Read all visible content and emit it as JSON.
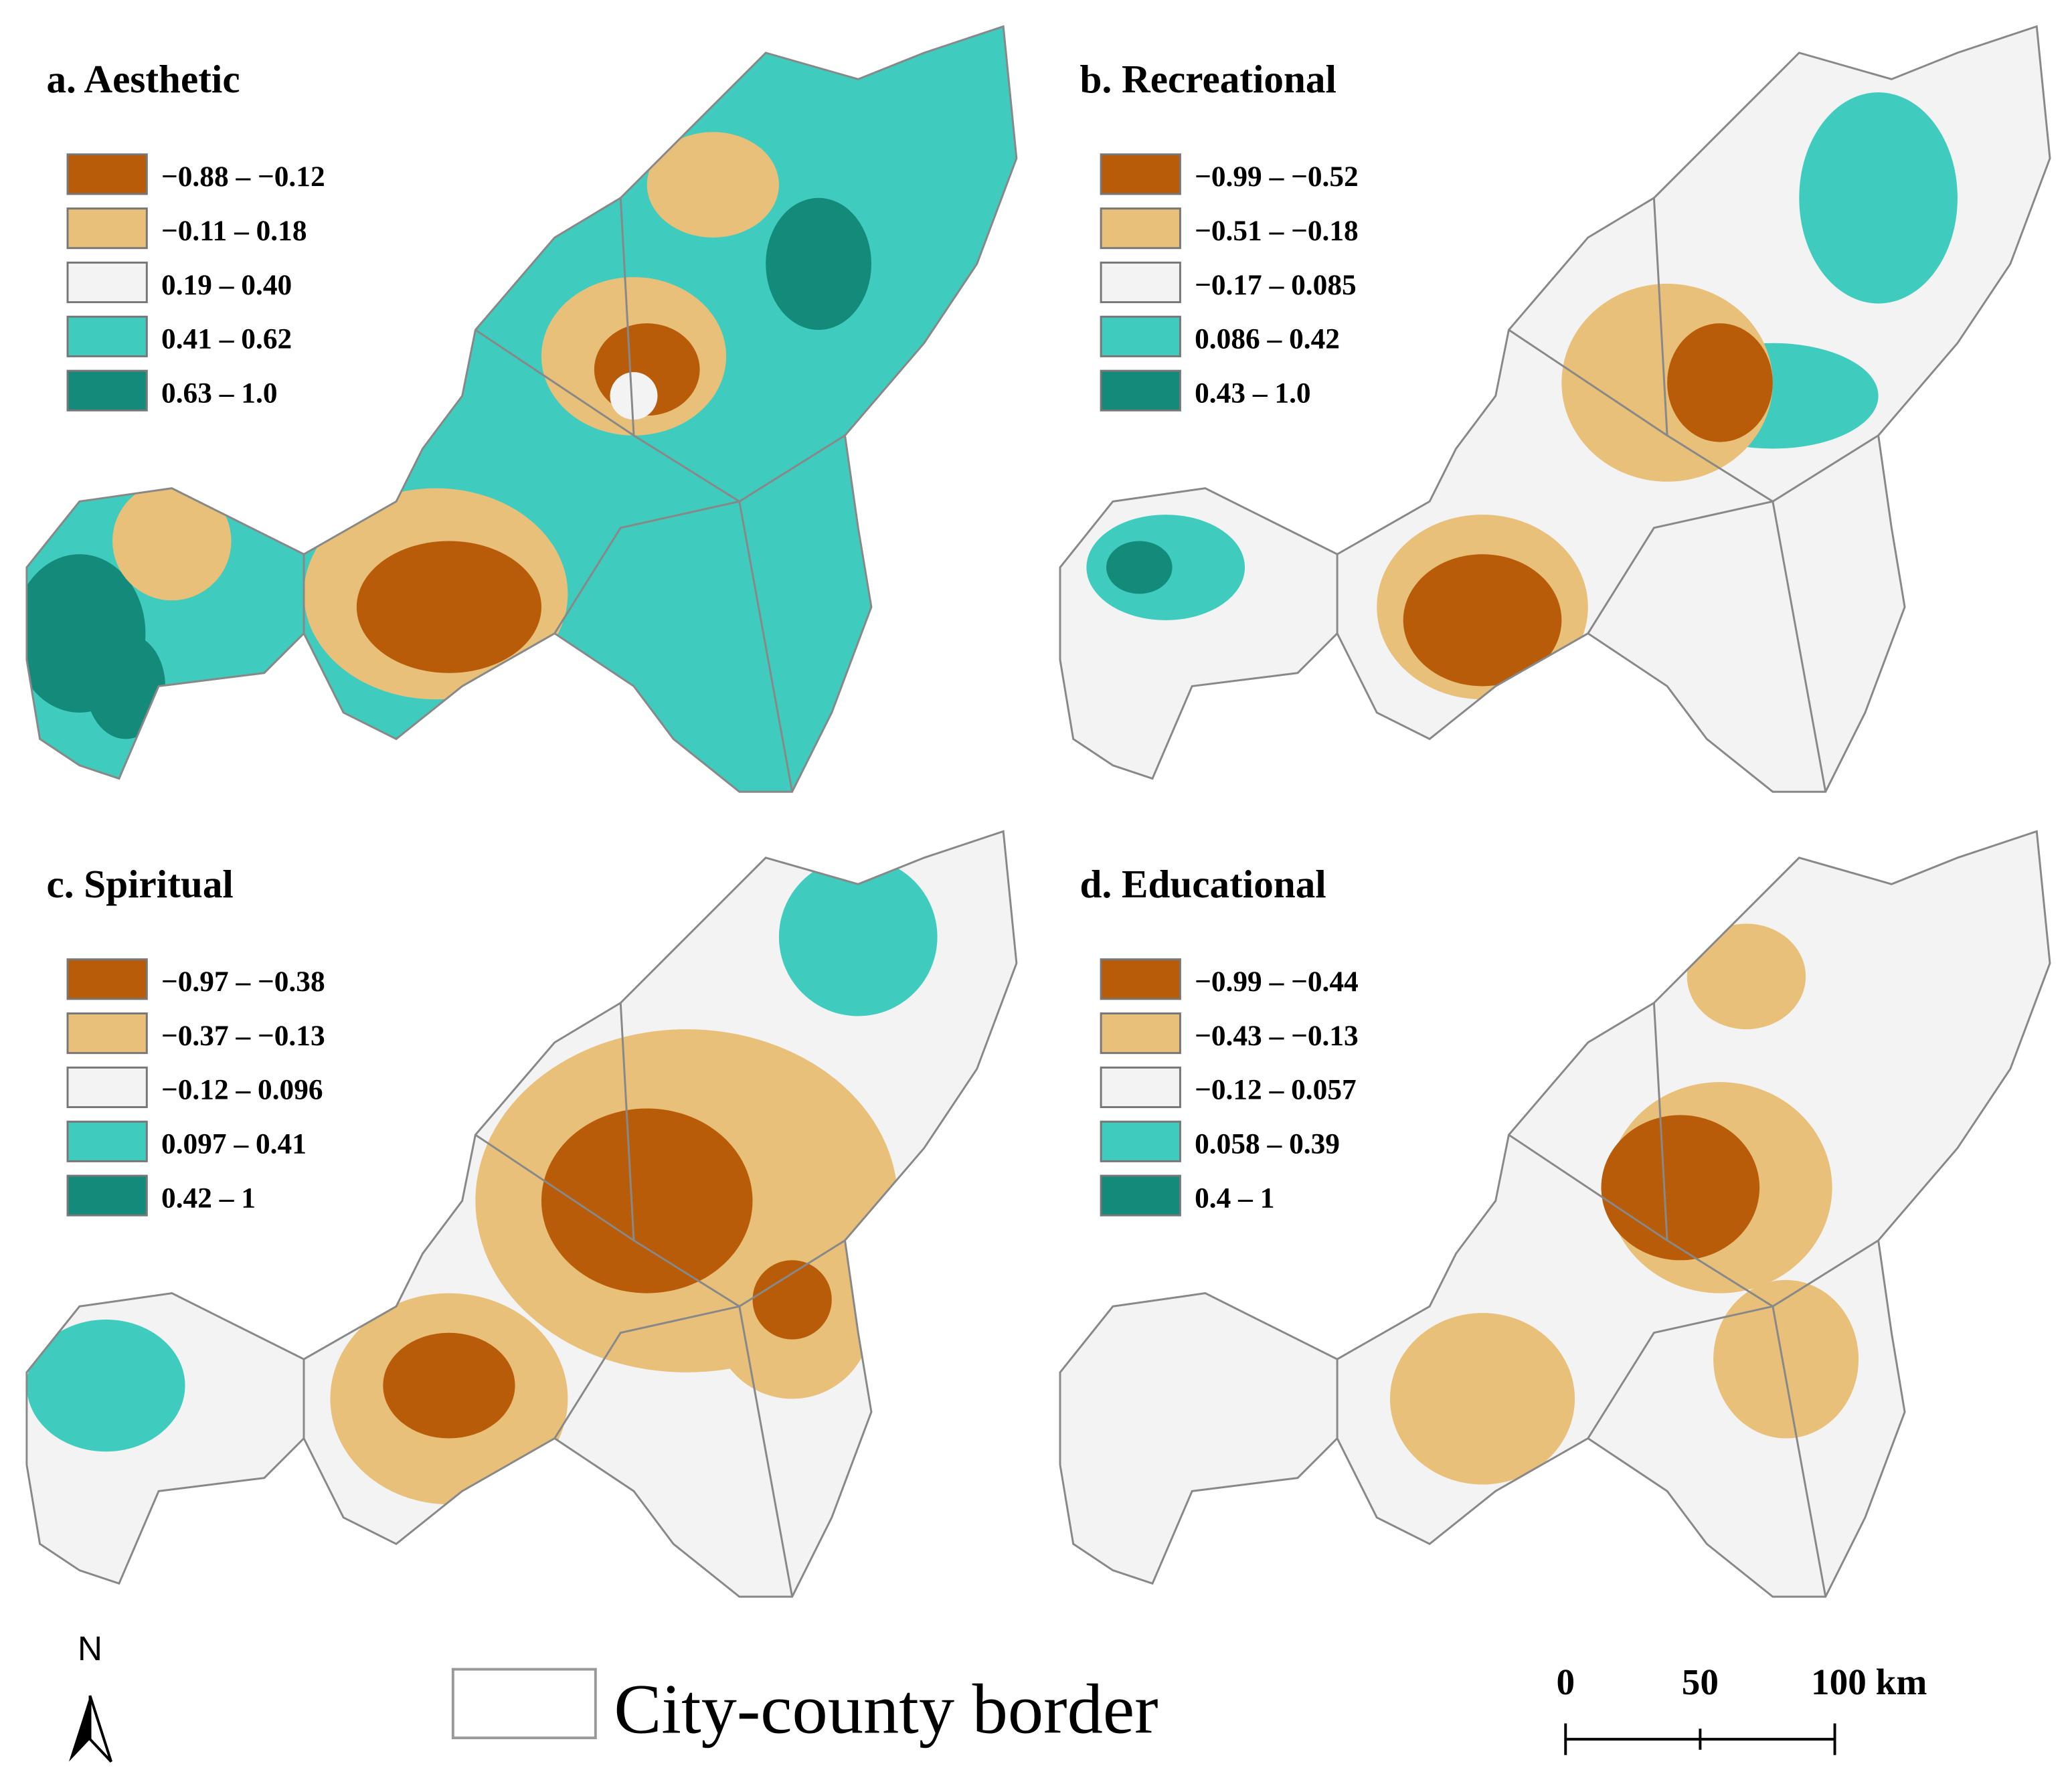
{
  "panels": [
    {
      "title": "a. Aesthetic",
      "legend": [
        {
          "label": "−0.88 – −0.12",
          "color": "#b85c0a"
        },
        {
          "label": "−0.11 – 0.18",
          "color": "#e8c07a"
        },
        {
          "label": "0.19 – 0.40",
          "color": "#f3f3f3"
        },
        {
          "label": "0.41 – 0.62",
          "color": "#40cbbf"
        },
        {
          "label": "0.63 – 1.0",
          "color": "#138a7a"
        }
      ]
    },
    {
      "title": "b. Recreational",
      "legend": [
        {
          "label": "−0.99 – −0.52",
          "color": "#b85c0a"
        },
        {
          "label": "−0.51 – −0.18",
          "color": "#e8c07a"
        },
        {
          "label": "−0.17 – 0.085",
          "color": "#f3f3f3"
        },
        {
          "label": "0.086 – 0.42",
          "color": "#40cbbf"
        },
        {
          "label": "0.43 – 1.0",
          "color": "#138a7a"
        }
      ]
    },
    {
      "title": "c. Spiritual",
      "legend": [
        {
          "label": "−0.97 – −0.38",
          "color": "#b85c0a"
        },
        {
          "label": "−0.37 – −0.13",
          "color": "#e8c07a"
        },
        {
          "label": "−0.12 – 0.096",
          "color": "#f3f3f3"
        },
        {
          "label": "0.097 – 0.41",
          "color": "#40cbbf"
        },
        {
          "label": "0.42 – 1",
          "color": "#138a7a"
        }
      ]
    },
    {
      "title": "d. Educational",
      "legend": [
        {
          "label": "−0.99 – −0.44",
          "color": "#b85c0a"
        },
        {
          "label": "−0.43 – −0.13",
          "color": "#e8c07a"
        },
        {
          "label": "−0.12 – 0.057",
          "color": "#f3f3f3"
        },
        {
          "label": "0.058 – 0.39",
          "color": "#40cbbf"
        },
        {
          "label": "0.4 – 1",
          "color": "#138a7a"
        }
      ]
    }
  ],
  "north": "N",
  "border_legend": "City-county border",
  "scale_bar": [
    "0",
    "50",
    "100 km"
  ]
}
